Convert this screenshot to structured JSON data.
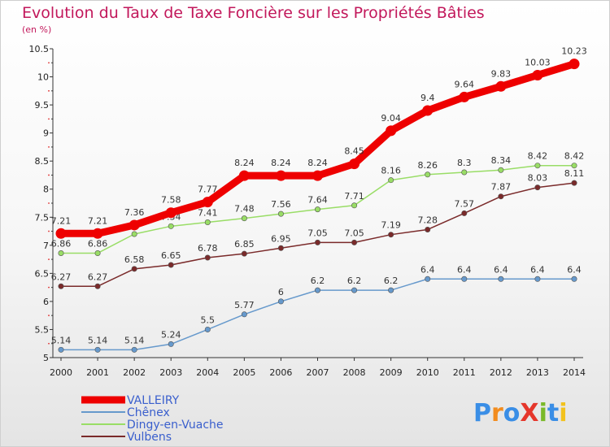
{
  "chart_data": {
    "type": "line",
    "title": "Evolution du Taux de Taxe Foncière sur les Propriétés Bâties",
    "subtitle": "(en %)",
    "x": [
      "2000",
      "2001",
      "2002",
      "2003",
      "2004",
      "2005",
      "2006",
      "2007",
      "2008",
      "2009",
      "2010",
      "2011",
      "2012",
      "2013",
      "2014"
    ],
    "ylim": [
      5,
      10.5
    ],
    "yticks": [
      "5",
      "5.5",
      "6",
      "6.5",
      "7",
      "7.5",
      "8",
      "8.5",
      "9",
      "9.5",
      "10",
      "10.5"
    ],
    "grid": false,
    "legend_position": "bottom-left",
    "series": [
      {
        "name": "VALLEIRY",
        "color": "#ee0000",
        "values": [
          7.21,
          7.21,
          7.36,
          7.58,
          7.77,
          8.24,
          8.24,
          8.24,
          8.45,
          9.04,
          9.4,
          9.64,
          9.83,
          10.03,
          10.23
        ],
        "labels": [
          "7.21",
          "7.21",
          "7.36",
          "7.58",
          "7.77",
          "8.24",
          "8.24",
          "8.24",
          "8.45",
          "9.04",
          "9.4",
          "9.64",
          "9.83",
          "10.03",
          "10.23"
        ]
      },
      {
        "name": "Chênex",
        "color": "#6699cc",
        "values": [
          5.14,
          5.14,
          5.14,
          5.24,
          5.5,
          5.77,
          6,
          6.2,
          6.2,
          6.2,
          6.4,
          6.4,
          6.4,
          6.4,
          6.4
        ],
        "labels": [
          "5.14",
          "5.14",
          "5.14",
          "5.24",
          "5.5",
          "5.77",
          "6",
          "6.2",
          "6.2",
          "6.2",
          "6.4",
          "6.4",
          "6.4",
          "6.4",
          "6.4"
        ]
      },
      {
        "name": "Dingy-en-Vuache",
        "color": "#99dd66",
        "values": [
          6.86,
          6.86,
          7.2,
          7.34,
          7.41,
          7.48,
          7.56,
          7.64,
          7.71,
          8.16,
          8.26,
          8.3,
          8.34,
          8.42,
          8.42
        ],
        "labels": [
          "6.86",
          "6.86",
          "",
          "7.34",
          "7.41",
          "7.48",
          "7.56",
          "7.64",
          "7.71",
          "8.16",
          "8.26",
          "8.3",
          "8.34",
          "8.42",
          "8.42"
        ]
      },
      {
        "name": "Vulbens",
        "color": "#7a2a2a",
        "values": [
          6.27,
          6.27,
          6.58,
          6.65,
          6.78,
          6.85,
          6.95,
          7.05,
          7.05,
          7.19,
          7.28,
          7.57,
          7.87,
          8.03,
          8.11
        ],
        "labels": [
          "6.27",
          "6.27",
          "6.58",
          "6.65",
          "6.78",
          "6.85",
          "6.95",
          "7.05",
          "7.05",
          "7.19",
          "7.28",
          "7.57",
          "7.87",
          "8.03",
          "8.11"
        ]
      }
    ]
  },
  "logo": {
    "text": "ProXiti",
    "letters": [
      {
        "ch": "P",
        "color": "#3a8ee6"
      },
      {
        "ch": "r",
        "color": "#f28c1e"
      },
      {
        "ch": "o",
        "color": "#3a8ee6"
      },
      {
        "ch": "X",
        "color": "#e5362b"
      },
      {
        "ch": "i",
        "color": "#7ab929"
      },
      {
        "ch": "t",
        "color": "#3a8ee6"
      },
      {
        "ch": "i",
        "color": "#f2c21e"
      }
    ]
  }
}
